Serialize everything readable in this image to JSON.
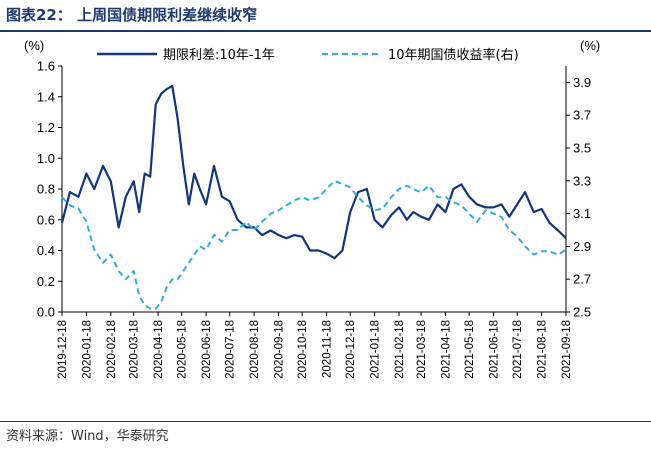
{
  "header": {
    "title": "图表22： 上周国债期限利差继续收窄"
  },
  "footer": {
    "source": "资料来源：Wind，华泰研究"
  },
  "colors": {
    "title": "#1f3a6e",
    "spread": "#13357a",
    "yield": "#36a9e1"
  },
  "chart_data": {
    "type": "line",
    "title": "",
    "left_axis": {
      "unit": "(%)",
      "ylim": [
        0.0,
        1.6
      ],
      "ticks": [
        "0.0",
        "0.2",
        "0.4",
        "0.6",
        "0.8",
        "1.0",
        "1.2",
        "1.4",
        "1.6"
      ]
    },
    "right_axis": {
      "unit": "(%)",
      "ylim": [
        2.5,
        4.0
      ],
      "ticks": [
        "2.5",
        "2.7",
        "2.9",
        "3.1",
        "3.3",
        "3.5",
        "3.7",
        "3.9"
      ]
    },
    "x_ticks": [
      "2019-12-18",
      "2020-01-18",
      "2020-02-18",
      "2020-03-18",
      "2020-04-18",
      "2020-05-18",
      "2020-06-18",
      "2020-07-18",
      "2020-08-18",
      "2020-09-18",
      "2020-10-18",
      "2020-11-18",
      "2020-12-18",
      "2021-01-18",
      "2021-02-18",
      "2021-03-18",
      "2021-04-18",
      "2021-05-18",
      "2021-06-18",
      "2021-07-18",
      "2021-08-18",
      "2021-09-18"
    ],
    "legend_position": "top",
    "series": [
      {
        "name": "期限利差:10年-1年",
        "axis": "left",
        "style": "solid",
        "x": [
          "2019-12-18",
          "2019-12-28",
          "2020-01-08",
          "2020-01-18",
          "2020-01-28",
          "2020-02-08",
          "2020-02-18",
          "2020-02-28",
          "2020-03-08",
          "2020-03-18",
          "2020-03-25",
          "2020-04-01",
          "2020-04-08",
          "2020-04-15",
          "2020-04-22",
          "2020-04-29",
          "2020-05-06",
          "2020-05-13",
          "2020-05-20",
          "2020-05-27",
          "2020-06-03",
          "2020-06-10",
          "2020-06-18",
          "2020-06-28",
          "2020-07-08",
          "2020-07-18",
          "2020-07-28",
          "2020-08-08",
          "2020-08-18",
          "2020-08-28",
          "2020-09-08",
          "2020-09-18",
          "2020-09-28",
          "2020-10-08",
          "2020-10-18",
          "2020-10-28",
          "2020-11-08",
          "2020-11-18",
          "2020-11-28",
          "2020-12-08",
          "2020-12-18",
          "2020-12-28",
          "2021-01-08",
          "2021-01-18",
          "2021-01-28",
          "2021-02-08",
          "2021-02-18",
          "2021-02-28",
          "2021-03-08",
          "2021-03-18",
          "2021-03-28",
          "2021-04-08",
          "2021-04-18",
          "2021-04-28",
          "2021-05-08",
          "2021-05-18",
          "2021-05-28",
          "2021-06-08",
          "2021-06-18",
          "2021-06-28",
          "2021-07-08",
          "2021-07-18",
          "2021-07-28",
          "2021-08-08",
          "2021-08-18",
          "2021-08-28",
          "2021-09-08",
          "2021-09-18"
        ],
        "y": [
          0.58,
          0.78,
          0.75,
          0.9,
          0.8,
          0.95,
          0.85,
          0.55,
          0.75,
          0.85,
          0.65,
          0.9,
          0.88,
          1.35,
          1.42,
          1.45,
          1.47,
          1.25,
          0.95,
          0.7,
          0.9,
          0.8,
          0.7,
          0.95,
          0.75,
          0.72,
          0.6,
          0.55,
          0.55,
          0.5,
          0.53,
          0.5,
          0.48,
          0.5,
          0.49,
          0.4,
          0.4,
          0.38,
          0.35,
          0.4,
          0.65,
          0.78,
          0.8,
          0.6,
          0.55,
          0.63,
          0.68,
          0.6,
          0.65,
          0.62,
          0.6,
          0.7,
          0.65,
          0.8,
          0.83,
          0.75,
          0.7,
          0.68,
          0.68,
          0.7,
          0.62,
          0.7,
          0.78,
          0.65,
          0.67,
          0.58,
          0.53,
          0.48
        ]
      },
      {
        "name": "10年期国债收益率(右)",
        "axis": "right",
        "style": "dashed",
        "x": [
          "2019-12-18",
          "2019-12-28",
          "2020-01-08",
          "2020-01-18",
          "2020-01-28",
          "2020-02-08",
          "2020-02-18",
          "2020-02-28",
          "2020-03-08",
          "2020-03-18",
          "2020-03-25",
          "2020-04-01",
          "2020-04-08",
          "2020-04-15",
          "2020-04-22",
          "2020-04-29",
          "2020-05-06",
          "2020-05-13",
          "2020-05-20",
          "2020-05-27",
          "2020-06-03",
          "2020-06-10",
          "2020-06-18",
          "2020-06-28",
          "2020-07-08",
          "2020-07-18",
          "2020-07-28",
          "2020-08-08",
          "2020-08-18",
          "2020-08-28",
          "2020-09-08",
          "2020-09-18",
          "2020-09-28",
          "2020-10-08",
          "2020-10-18",
          "2020-10-28",
          "2020-11-08",
          "2020-11-18",
          "2020-11-28",
          "2020-12-08",
          "2020-12-18",
          "2020-12-28",
          "2021-01-08",
          "2021-01-18",
          "2021-01-28",
          "2021-02-08",
          "2021-02-18",
          "2021-02-28",
          "2021-03-08",
          "2021-03-18",
          "2021-03-28",
          "2021-04-08",
          "2021-04-18",
          "2021-04-28",
          "2021-05-08",
          "2021-05-18",
          "2021-05-28",
          "2021-06-08",
          "2021-06-18",
          "2021-06-28",
          "2021-07-08",
          "2021-07-18",
          "2021-07-28",
          "2021-08-08",
          "2021-08-18",
          "2021-08-28",
          "2021-09-08",
          "2021-09-18"
        ],
        "y": [
          3.2,
          3.15,
          3.13,
          3.05,
          2.88,
          2.8,
          2.85,
          2.75,
          2.7,
          2.75,
          2.6,
          2.54,
          2.52,
          2.52,
          2.56,
          2.65,
          2.7,
          2.7,
          2.75,
          2.8,
          2.85,
          2.9,
          2.88,
          2.97,
          2.93,
          3.0,
          3.0,
          3.05,
          3.0,
          3.05,
          3.1,
          3.12,
          3.15,
          3.18,
          3.2,
          3.18,
          3.2,
          3.25,
          3.3,
          3.28,
          3.26,
          3.2,
          3.15,
          3.12,
          3.13,
          3.2,
          3.25,
          3.27,
          3.25,
          3.23,
          3.27,
          3.2,
          3.2,
          3.17,
          3.15,
          3.1,
          3.05,
          3.12,
          3.1,
          3.08,
          3.0,
          2.96,
          2.9,
          2.85,
          2.87,
          2.87,
          2.85,
          2.88
        ]
      }
    ]
  }
}
